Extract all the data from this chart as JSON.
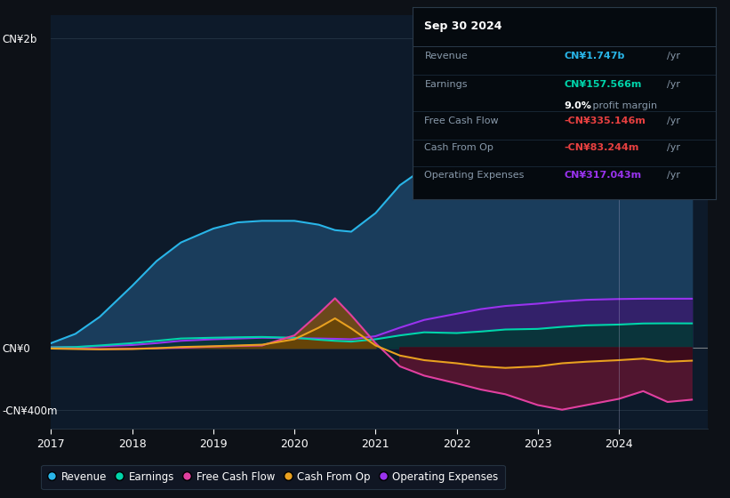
{
  "background_color": "#0d1117",
  "plot_bg_color": "#0d1a2a",
  "grid_color": "#263545",
  "ylim": [
    -520000000,
    2100000000
  ],
  "x_years": [
    2017.0,
    2017.3,
    2017.6,
    2018.0,
    2018.3,
    2018.6,
    2019.0,
    2019.3,
    2019.6,
    2020.0,
    2020.3,
    2020.5,
    2020.7,
    2021.0,
    2021.3,
    2021.6,
    2022.0,
    2022.3,
    2022.6,
    2023.0,
    2023.3,
    2023.6,
    2024.0,
    2024.3,
    2024.6,
    2024.9
  ],
  "revenue": [
    30000000,
    90000000,
    200000000,
    400000000,
    560000000,
    680000000,
    770000000,
    810000000,
    820000000,
    820000000,
    795000000,
    760000000,
    750000000,
    870000000,
    1050000000,
    1160000000,
    1230000000,
    1270000000,
    1310000000,
    1360000000,
    1430000000,
    1510000000,
    1570000000,
    1800000000,
    1740000000,
    1747000000
  ],
  "earnings": [
    3000000,
    5000000,
    15000000,
    30000000,
    45000000,
    60000000,
    65000000,
    68000000,
    70000000,
    65000000,
    52000000,
    45000000,
    40000000,
    55000000,
    80000000,
    100000000,
    95000000,
    105000000,
    118000000,
    122000000,
    135000000,
    145000000,
    150000000,
    157000000,
    158000000,
    157566000
  ],
  "free_cash_flow": [
    -3000000,
    -5000000,
    -8000000,
    -6000000,
    -3000000,
    0,
    8000000,
    12000000,
    15000000,
    80000000,
    220000000,
    320000000,
    210000000,
    30000000,
    -120000000,
    -180000000,
    -230000000,
    -270000000,
    -300000000,
    -370000000,
    -400000000,
    -370000000,
    -330000000,
    -280000000,
    -350000000,
    -335146000
  ],
  "cash_from_op": [
    -5000000,
    -8000000,
    -10000000,
    -8000000,
    -3000000,
    5000000,
    10000000,
    15000000,
    20000000,
    55000000,
    130000000,
    190000000,
    125000000,
    15000000,
    -50000000,
    -80000000,
    -100000000,
    -120000000,
    -130000000,
    -120000000,
    -100000000,
    -90000000,
    -80000000,
    -70000000,
    -90000000,
    -83244000
  ],
  "op_expenses": [
    3000000,
    5000000,
    10000000,
    18000000,
    30000000,
    45000000,
    55000000,
    60000000,
    65000000,
    62000000,
    60000000,
    58000000,
    55000000,
    75000000,
    130000000,
    180000000,
    220000000,
    250000000,
    270000000,
    285000000,
    300000000,
    310000000,
    315000000,
    317000000,
    317043000,
    317043000
  ],
  "revenue_color": "#29b5e8",
  "revenue_fill": "#1a3d5c",
  "earnings_color": "#00d4aa",
  "earnings_fill": "#003a30",
  "free_cash_flow_color": "#e040a0",
  "cash_from_op_color": "#e8a020",
  "op_expenses_color": "#9933ee",
  "op_expenses_fill": "#3a1a6e",
  "neg_fill_outer": "#5c1530",
  "neg_fill_inner": "#3a0a18",
  "pos_fcf_fill": "#7a4a10",
  "info_box": {
    "date": "Sep 30 2024",
    "revenue_label": "Revenue",
    "revenue_value": "CN¥1.747b",
    "revenue_color": "#29b5e8",
    "earnings_label": "Earnings",
    "earnings_value": "CN¥157.566m",
    "earnings_color": "#00d4aa",
    "margin_text": "9.0%",
    "margin_suffix": " profit margin",
    "fcf_label": "Free Cash Flow",
    "fcf_value": "-CN¥335.146m",
    "fcf_color": "#e84040",
    "cop_label": "Cash From Op",
    "cop_value": "-CN¥83.244m",
    "cop_color": "#e84040",
    "opex_label": "Operating Expenses",
    "opex_value": "CN¥317.043m",
    "opex_color": "#9933ee"
  },
  "legend_items": [
    {
      "label": "Revenue",
      "color": "#29b5e8"
    },
    {
      "label": "Earnings",
      "color": "#00d4aa"
    },
    {
      "label": "Free Cash Flow",
      "color": "#e040a0"
    },
    {
      "label": "Cash From Op",
      "color": "#e8a020"
    },
    {
      "label": "Operating Expenses",
      "color": "#9933ee"
    }
  ],
  "xtick_years": [
    2017,
    2018,
    2019,
    2020,
    2021,
    2022,
    2023,
    2024
  ],
  "highlight_x": 2024.0
}
